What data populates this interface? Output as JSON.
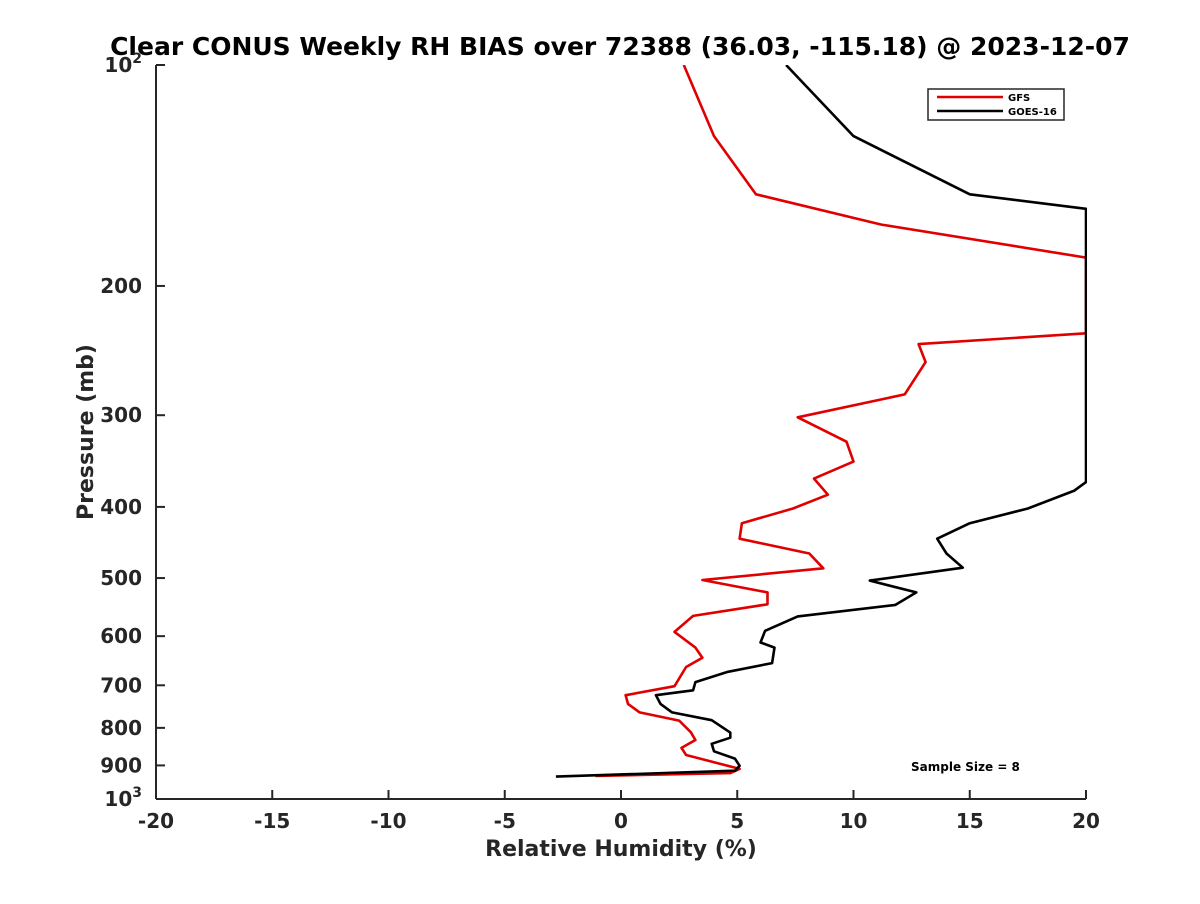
{
  "chart_data": {
    "type": "line",
    "title": "Clear CONUS Weekly RH BIAS over 72388 (36.03, -115.18) @ 2023-12-07",
    "xlabel": "Relative Humidity (%)",
    "ylabel": "Pressure (mb)",
    "xlim": [
      -20,
      20
    ],
    "ylim": [
      100,
      1000
    ],
    "y_scale": "log",
    "y_reversed": true,
    "grid": false,
    "legend_position": "top-right",
    "x_ticks": [
      "-20",
      "-15",
      "-10",
      "-5",
      "0",
      "5",
      "10",
      "15",
      "20"
    ],
    "y_ticks": [
      {
        "value": 100,
        "base": "10",
        "exp": "2"
      },
      {
        "value": 200,
        "label": "200"
      },
      {
        "value": 300,
        "label": "300"
      },
      {
        "value": 400,
        "label": "400"
      },
      {
        "value": 500,
        "label": "500"
      },
      {
        "value": 600,
        "label": "600"
      },
      {
        "value": 700,
        "label": "700"
      },
      {
        "value": 800,
        "label": "800"
      },
      {
        "value": 900,
        "label": "900"
      },
      {
        "value": 1000,
        "base": "10",
        "exp": "3"
      }
    ],
    "annotation": "Sample Size = 8",
    "series": [
      {
        "name": "GFS",
        "color": "#e00000",
        "points": [
          {
            "x": 2.7,
            "p": 100
          },
          {
            "x": 4.0,
            "p": 125
          },
          {
            "x": 5.8,
            "p": 150
          },
          {
            "x": 11.2,
            "p": 165
          },
          {
            "x": 20.0,
            "p": 183
          },
          {
            "x": 20.0,
            "p": 232
          },
          {
            "x": 12.8,
            "p": 240
          },
          {
            "x": 13.1,
            "p": 254
          },
          {
            "x": 12.2,
            "p": 281
          },
          {
            "x": 7.6,
            "p": 302
          },
          {
            "x": 9.7,
            "p": 326
          },
          {
            "x": 10.0,
            "p": 347
          },
          {
            "x": 8.3,
            "p": 366
          },
          {
            "x": 8.9,
            "p": 385
          },
          {
            "x": 7.4,
            "p": 402
          },
          {
            "x": 5.2,
            "p": 421
          },
          {
            "x": 5.1,
            "p": 442
          },
          {
            "x": 8.1,
            "p": 463
          },
          {
            "x": 8.7,
            "p": 485
          },
          {
            "x": 3.5,
            "p": 503
          },
          {
            "x": 6.3,
            "p": 523
          },
          {
            "x": 6.3,
            "p": 543
          },
          {
            "x": 3.1,
            "p": 563
          },
          {
            "x": 2.3,
            "p": 592
          },
          {
            "x": 3.2,
            "p": 622
          },
          {
            "x": 3.5,
            "p": 642
          },
          {
            "x": 2.8,
            "p": 661
          },
          {
            "x": 2.3,
            "p": 702
          },
          {
            "x": 0.2,
            "p": 722
          },
          {
            "x": 0.3,
            "p": 742
          },
          {
            "x": 0.8,
            "p": 762
          },
          {
            "x": 2.5,
            "p": 782
          },
          {
            "x": 3.0,
            "p": 811
          },
          {
            "x": 3.2,
            "p": 831
          },
          {
            "x": 2.6,
            "p": 852
          },
          {
            "x": 2.8,
            "p": 871
          },
          {
            "x": 4.0,
            "p": 891
          },
          {
            "x": 5.1,
            "p": 910
          },
          {
            "x": 4.7,
            "p": 922
          },
          {
            "x": -1.1,
            "p": 930
          }
        ]
      },
      {
        "name": "GOES-16",
        "color": "#000000",
        "points": [
          {
            "x": 7.1,
            "p": 100
          },
          {
            "x": 10.0,
            "p": 125
          },
          {
            "x": 15.0,
            "p": 150
          },
          {
            "x": 20.0,
            "p": 157
          },
          {
            "x": 20.0,
            "p": 370
          },
          {
            "x": 19.5,
            "p": 380
          },
          {
            "x": 17.5,
            "p": 402
          },
          {
            "x": 15.0,
            "p": 421
          },
          {
            "x": 13.6,
            "p": 442
          },
          {
            "x": 14.0,
            "p": 463
          },
          {
            "x": 14.7,
            "p": 484
          },
          {
            "x": 10.7,
            "p": 504
          },
          {
            "x": 12.7,
            "p": 523
          },
          {
            "x": 11.8,
            "p": 544
          },
          {
            "x": 7.6,
            "p": 564
          },
          {
            "x": 6.2,
            "p": 590
          },
          {
            "x": 6.0,
            "p": 612
          },
          {
            "x": 6.6,
            "p": 622
          },
          {
            "x": 6.5,
            "p": 653
          },
          {
            "x": 4.6,
            "p": 671
          },
          {
            "x": 3.2,
            "p": 693
          },
          {
            "x": 3.1,
            "p": 711
          },
          {
            "x": 1.5,
            "p": 722
          },
          {
            "x": 1.7,
            "p": 742
          },
          {
            "x": 2.2,
            "p": 762
          },
          {
            "x": 3.9,
            "p": 781
          },
          {
            "x": 4.7,
            "p": 812
          },
          {
            "x": 4.7,
            "p": 825
          },
          {
            "x": 3.9,
            "p": 841
          },
          {
            "x": 4.0,
            "p": 861
          },
          {
            "x": 4.9,
            "p": 881
          },
          {
            "x": 5.1,
            "p": 901
          },
          {
            "x": 4.9,
            "p": 915
          },
          {
            "x": -2.8,
            "p": 932
          }
        ]
      }
    ]
  }
}
